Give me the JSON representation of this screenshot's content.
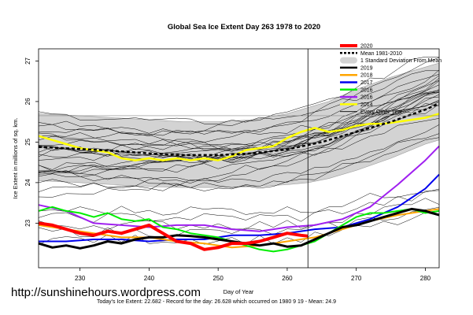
{
  "chart_data": {
    "type": "line",
    "title": "Global Sea Ice Extent Day 263 1978 to 2020",
    "xlabel": "Day of Year",
    "ylabel": "Ice Extent in millions of sq. km.",
    "xlim": [
      224,
      282
    ],
    "ylim": [
      21.9,
      27.3
    ],
    "x_ticks": [
      230,
      240,
      250,
      260,
      270,
      280
    ],
    "y_ticks": [
      23,
      24,
      25,
      26,
      27
    ],
    "grid": true,
    "legend_position": "top-right",
    "current_day_marker": 263,
    "reference_level": 25.65,
    "std_band": {
      "name": "1 Standard Deviation From Mean",
      "x": [
        224,
        230,
        235,
        240,
        245,
        250,
        255,
        260,
        263,
        266,
        270,
        275,
        280,
        282
      ],
      "lower": [
        24.05,
        24.0,
        23.95,
        23.9,
        23.88,
        23.88,
        23.9,
        23.95,
        24.0,
        24.1,
        24.3,
        24.6,
        24.95,
        25.05
      ],
      "upper": [
        25.7,
        25.65,
        25.6,
        25.55,
        25.5,
        25.5,
        25.55,
        25.7,
        25.85,
        26.0,
        26.3,
        26.6,
        26.85,
        26.95
      ]
    },
    "series": [
      {
        "name": "2020",
        "color": "#ff0000",
        "width": 4,
        "x": [
          224,
          226,
          228,
          230,
          232,
          234,
          236,
          238,
          240,
          241,
          242,
          244,
          246,
          248,
          250,
          252,
          254,
          256,
          258,
          260,
          262,
          263
        ],
        "values": [
          23.0,
          22.95,
          22.85,
          22.75,
          22.7,
          22.8,
          22.75,
          22.85,
          22.95,
          22.85,
          22.75,
          22.55,
          22.5,
          22.35,
          22.4,
          22.5,
          22.5,
          22.55,
          22.65,
          22.75,
          22.7,
          22.68
        ]
      },
      {
        "name": "Mean 1981-2010",
        "color": "#000000",
        "dash": "4,3",
        "width": 2.5,
        "x": [
          224,
          230,
          235,
          240,
          245,
          250,
          255,
          260,
          265,
          270,
          275,
          280,
          282
        ],
        "values": [
          24.88,
          24.83,
          24.78,
          24.72,
          24.68,
          24.68,
          24.72,
          24.82,
          25.0,
          25.25,
          25.5,
          25.8,
          25.95
        ]
      },
      {
        "name": "2019",
        "color": "#000000",
        "width": 3,
        "x": [
          224,
          226,
          228,
          230,
          232,
          234,
          236,
          238,
          240,
          242,
          244,
          246,
          248,
          250,
          252,
          254,
          256,
          258,
          260,
          262,
          264,
          266,
          268,
          270,
          272,
          274,
          276,
          278,
          280,
          282
        ],
        "values": [
          22.5,
          22.4,
          22.45,
          22.38,
          22.45,
          22.55,
          22.5,
          22.6,
          22.65,
          22.65,
          22.7,
          22.68,
          22.65,
          22.6,
          22.55,
          22.5,
          22.45,
          22.5,
          22.42,
          22.45,
          22.6,
          22.75,
          22.9,
          22.95,
          23.05,
          23.15,
          23.25,
          23.35,
          23.3,
          23.2
        ]
      },
      {
        "name": "2018",
        "color": "#ffa500",
        "width": 2,
        "x": [
          224,
          228,
          232,
          236,
          240,
          244,
          248,
          252,
          256,
          260,
          264,
          268,
          272,
          276,
          280,
          282
        ],
        "values": [
          22.95,
          22.85,
          22.75,
          22.65,
          22.65,
          22.55,
          22.5,
          22.4,
          22.45,
          22.55,
          22.65,
          22.85,
          23.05,
          23.2,
          23.3,
          23.35
        ]
      },
      {
        "name": "2017",
        "color": "#0000ee",
        "width": 2,
        "x": [
          224,
          228,
          232,
          236,
          240,
          244,
          248,
          252,
          256,
          260,
          264,
          268,
          272,
          276,
          280,
          282
        ],
        "values": [
          22.55,
          22.55,
          22.6,
          22.6,
          22.55,
          22.6,
          22.6,
          22.7,
          22.7,
          22.75,
          22.85,
          22.9,
          23.1,
          23.4,
          23.85,
          24.2
        ]
      },
      {
        "name": "2016",
        "color": "#00ee00",
        "width": 2,
        "x": [
          224,
          226,
          228,
          230,
          232,
          234,
          236,
          238,
          240,
          242,
          244,
          246,
          248,
          250,
          252,
          254,
          256,
          258,
          260,
          262,
          264,
          266,
          268,
          270,
          272,
          274,
          276,
          278,
          280,
          282
        ],
        "values": [
          23.3,
          23.4,
          23.3,
          23.25,
          23.15,
          23.25,
          23.1,
          23.05,
          23.1,
          22.9,
          22.85,
          22.75,
          22.7,
          22.65,
          22.55,
          22.45,
          22.35,
          22.3,
          22.35,
          22.45,
          22.55,
          22.75,
          22.95,
          23.15,
          23.25,
          23.25,
          23.3,
          23.35,
          23.25,
          23.3
        ]
      },
      {
        "name": "2016b",
        "color": "#a020f0",
        "width": 2,
        "x": [
          224,
          228,
          232,
          236,
          240,
          244,
          248,
          252,
          256,
          260,
          264,
          268,
          272,
          276,
          280,
          282
        ],
        "values": [
          23.45,
          23.3,
          23.0,
          22.95,
          22.9,
          22.95,
          22.95,
          22.85,
          22.8,
          22.9,
          22.95,
          23.1,
          23.4,
          23.95,
          24.55,
          24.9
        ]
      },
      {
        "name": "2014",
        "color": "#ffff00",
        "width": 2.5,
        "x": [
          224,
          226,
          228,
          230,
          232,
          234,
          236,
          238,
          240,
          242,
          244,
          246,
          248,
          250,
          252,
          254,
          256,
          258,
          260,
          262,
          264,
          266,
          268,
          270,
          272,
          274,
          276,
          278,
          280,
          282
        ],
        "values": [
          25.15,
          25.05,
          24.95,
          24.85,
          24.8,
          24.75,
          24.6,
          24.55,
          24.6,
          24.55,
          24.6,
          24.55,
          24.6,
          24.55,
          24.65,
          24.8,
          24.85,
          24.9,
          25.1,
          25.25,
          25.35,
          25.25,
          25.3,
          25.4,
          25.45,
          25.45,
          25.5,
          25.55,
          25.6,
          25.7
        ]
      },
      {
        "name": "Every Other Year",
        "color": "#000000",
        "width": 0.6
      }
    ],
    "legend": [
      {
        "label": "2020",
        "color": "#ff0000",
        "style": "line-thick"
      },
      {
        "label": "Mean 1981-2010",
        "color": "#000000",
        "style": "dashed"
      },
      {
        "label": "1 Standard Deviation From Mean",
        "color": "#bebebe",
        "style": "band"
      },
      {
        "label": "2019",
        "color": "#000000",
        "style": "line"
      },
      {
        "label": "2018",
        "color": "#ffa500",
        "style": "line"
      },
      {
        "label": "2017",
        "color": "#0000ee",
        "style": "line"
      },
      {
        "label": "2016",
        "color": "#00ee00",
        "style": "line"
      },
      {
        "label": "2016",
        "color": "#a020f0",
        "style": "line"
      },
      {
        "label": "2014",
        "color": "#ffff00",
        "style": "line"
      },
      {
        "label": "Every Other Year",
        "color": "#000000",
        "style": "thin"
      }
    ]
  },
  "watermark": "http://sunshinehours.wordpress.com",
  "footer": "Today's Ice Extent: 22.682  - Record for the day: 26.628 which occurred on 1980 9 19  - Mean: 24.9"
}
